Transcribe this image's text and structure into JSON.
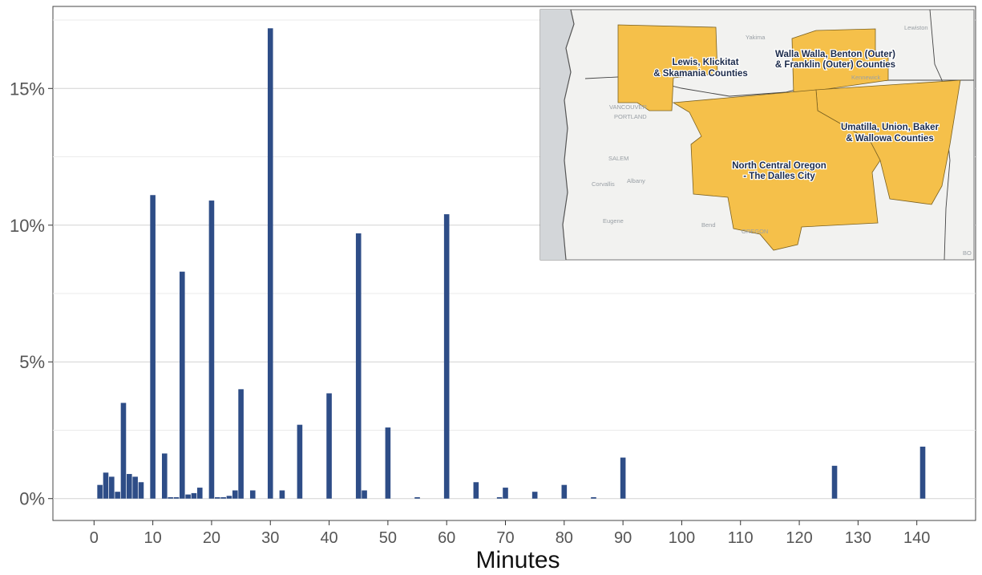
{
  "chart_data": {
    "type": "bar",
    "xlabel": "Minutes",
    "ylabel": "",
    "xlim": [
      -7,
      150
    ],
    "ylim": [
      -0.8,
      18
    ],
    "x_ticks": [
      0,
      10,
      20,
      30,
      40,
      50,
      60,
      70,
      80,
      90,
      100,
      110,
      120,
      130,
      140
    ],
    "x_tick_labels": [
      "0",
      "10",
      "20",
      "30",
      "40",
      "50",
      "60",
      "70",
      "80",
      "90",
      "100",
      "110",
      "120",
      "130",
      "140"
    ],
    "y_ticks": [
      0,
      5,
      10,
      15
    ],
    "y_tick_labels": [
      "0%",
      "5%",
      "10%",
      "15%"
    ],
    "grid": true,
    "bar_color": "#2e4d87",
    "x": [
      1,
      2,
      3,
      4,
      5,
      6,
      7,
      8,
      10,
      12,
      13,
      14,
      15,
      16,
      17,
      18,
      20,
      21,
      22,
      23,
      24,
      25,
      27,
      30,
      32,
      35,
      40,
      45,
      46,
      50,
      55,
      60,
      65,
      69,
      70,
      75,
      80,
      85,
      90,
      126,
      141
    ],
    "values": [
      0.5,
      0.95,
      0.8,
      0.25,
      3.5,
      0.9,
      0.8,
      0.6,
      11.1,
      1.65,
      0.05,
      0.05,
      8.3,
      0.15,
      0.2,
      0.4,
      10.9,
      0.05,
      0.05,
      0.1,
      0.3,
      4.0,
      0.3,
      17.2,
      0.3,
      2.7,
      3.85,
      9.7,
      0.3,
      2.6,
      0.05,
      10.4,
      0.6,
      0.05,
      0.4,
      0.25,
      0.5,
      0.05,
      1.5,
      1.2,
      1.9
    ]
  },
  "inset_map": {
    "region_color": "#f5c04a",
    "regions": [
      {
        "id": "lewis",
        "label_lines": [
          "Lewis, Klickitat",
          "& Skamania Counties"
        ]
      },
      {
        "id": "walla",
        "label_lines": [
          "Walla Walla, Benton (Outer)",
          "& Franklin (Outer) Counties"
        ]
      },
      {
        "id": "umatilla",
        "label_lines": [
          "Umatilla, Union, Baker",
          "& Wallowa Counties"
        ]
      },
      {
        "id": "central",
        "label_lines": [
          "North Central Oregon",
          "- The Dalles City"
        ]
      }
    ],
    "cities": [
      "Yakima",
      "Lewiston",
      "VANCOUVER",
      "PORTLAND",
      "SALEM",
      "Albany",
      "Corvallis",
      "Eugene",
      "Bend",
      "OREGON",
      "Kennewick",
      "BO"
    ]
  }
}
